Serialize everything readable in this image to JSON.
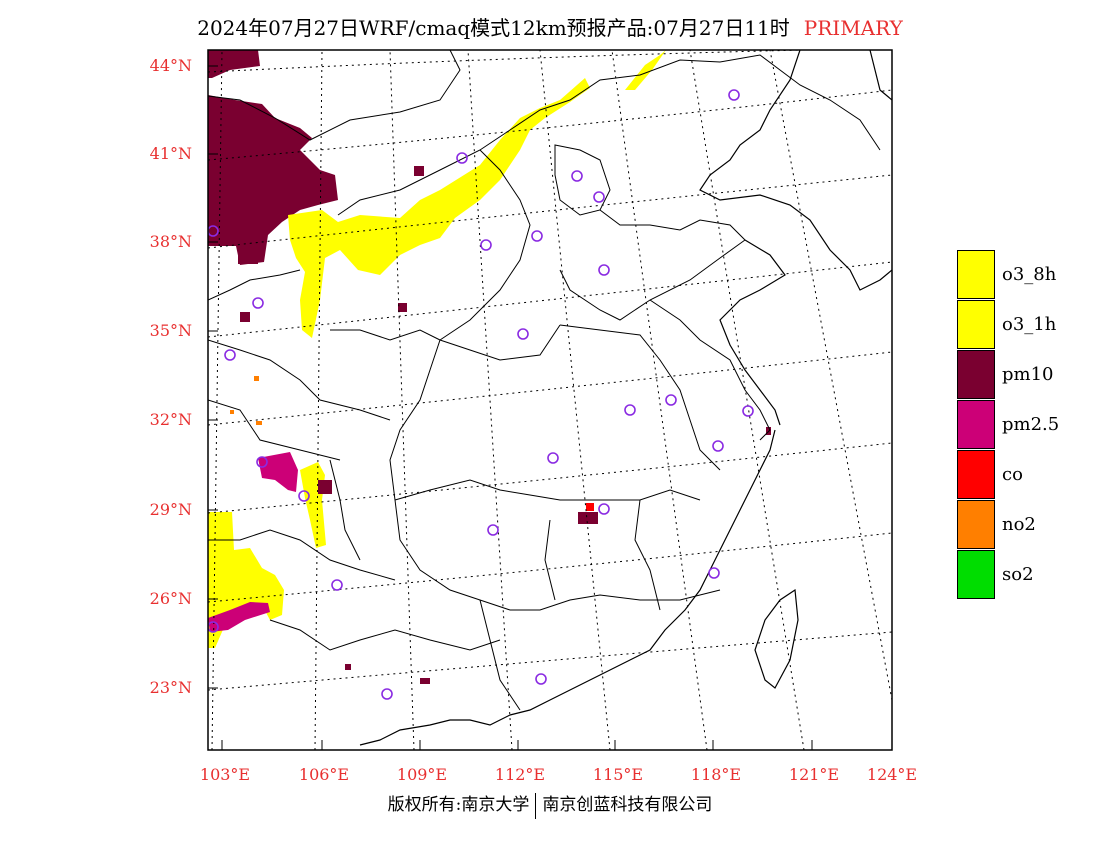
{
  "header": {
    "title": "2024年07月27日WRF/cmaq模式12km预报产品:07月27日11时",
    "pollutant_tag": "PRIMARY"
  },
  "axes": {
    "lat_labels": [
      "44°N",
      "41°N",
      "38°N",
      "35°N",
      "32°N",
      "29°N",
      "26°N",
      "23°N"
    ],
    "lon_labels": [
      "103°E",
      "106°E",
      "109°E",
      "112°E",
      "115°E",
      "118°E",
      "121°E",
      "124°E"
    ]
  },
  "legend": {
    "items": [
      {
        "label": "o3_8h",
        "color": "#ffff00"
      },
      {
        "label": "o3_1h",
        "color": "#ffff00"
      },
      {
        "label": "pm10",
        "color": "#7a0030"
      },
      {
        "label": "pm2.5",
        "color": "#cc0077"
      },
      {
        "label": "co",
        "color": "#ff0000"
      },
      {
        "label": "no2",
        "color": "#ff7f00"
      },
      {
        "label": "so2",
        "color": "#00dd00"
      }
    ]
  },
  "footer": {
    "left": "版权所有:南京大学",
    "right": "南京创蓝科技有限公司"
  }
}
